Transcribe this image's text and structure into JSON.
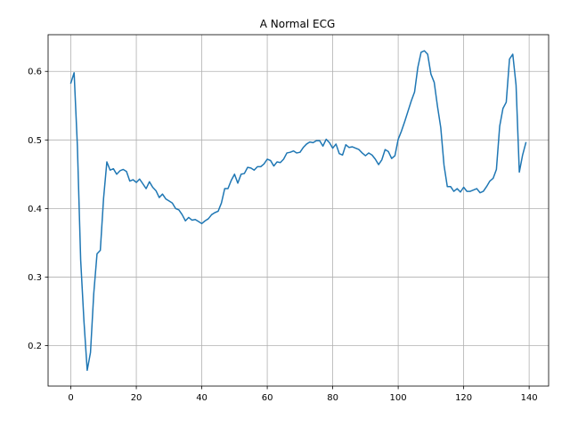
{
  "chart_data": {
    "type": "line",
    "title": "A Normal ECG",
    "xlabel": "",
    "ylabel": "",
    "xlim": [
      -6.95,
      145.95
    ],
    "ylim": [
      0.141,
      0.6535
    ],
    "xticks": [
      0,
      20,
      40,
      60,
      80,
      100,
      120,
      140
    ],
    "yticks": [
      0.2,
      0.3,
      0.4,
      0.5,
      0.6
    ],
    "grid": true,
    "series": [
      {
        "color": "#1f77b4",
        "x": [
          0,
          1,
          2,
          3,
          4,
          5,
          6,
          7,
          8,
          9,
          10,
          11,
          12,
          13,
          14,
          15,
          16,
          17,
          18,
          19,
          20,
          21,
          22,
          23,
          24,
          25,
          26,
          27,
          28,
          29,
          30,
          31,
          32,
          33,
          34,
          35,
          36,
          37,
          38,
          39,
          40,
          41,
          42,
          43,
          44,
          45,
          46,
          47,
          48,
          49,
          50,
          51,
          52,
          53,
          54,
          55,
          56,
          57,
          58,
          59,
          60,
          61,
          62,
          63,
          64,
          65,
          66,
          67,
          68,
          69,
          70,
          71,
          72,
          73,
          74,
          75,
          76,
          77,
          78,
          79,
          80,
          81,
          82,
          83,
          84,
          85,
          86,
          87,
          88,
          89,
          90,
          91,
          92,
          93,
          94,
          95,
          96,
          97,
          98,
          99,
          100,
          101,
          102,
          103,
          104,
          105,
          106,
          107,
          108,
          109,
          110,
          111,
          112,
          113,
          114,
          115,
          116,
          117,
          118,
          119,
          120,
          121,
          122,
          123,
          124,
          125,
          126,
          127,
          128,
          129,
          130,
          131,
          132,
          133,
          134,
          135,
          136,
          137,
          138,
          139
        ],
        "values": [
          0.583,
          0.598,
          0.491,
          0.325,
          0.236,
          0.164,
          0.19,
          0.276,
          0.334,
          0.339,
          0.415,
          0.468,
          0.456,
          0.458,
          0.45,
          0.455,
          0.457,
          0.454,
          0.44,
          0.442,
          0.438,
          0.443,
          0.436,
          0.429,
          0.439,
          0.431,
          0.426,
          0.416,
          0.421,
          0.414,
          0.411,
          0.408,
          0.4,
          0.398,
          0.391,
          0.382,
          0.387,
          0.383,
          0.384,
          0.381,
          0.378,
          0.382,
          0.385,
          0.391,
          0.394,
          0.396,
          0.408,
          0.429,
          0.429,
          0.441,
          0.45,
          0.437,
          0.45,
          0.451,
          0.46,
          0.459,
          0.456,
          0.461,
          0.461,
          0.465,
          0.472,
          0.47,
          0.462,
          0.468,
          0.467,
          0.472,
          0.481,
          0.482,
          0.484,
          0.481,
          0.482,
          0.489,
          0.494,
          0.497,
          0.496,
          0.499,
          0.499,
          0.491,
          0.501,
          0.496,
          0.488,
          0.494,
          0.48,
          0.478,
          0.493,
          0.489,
          0.49,
          0.488,
          0.486,
          0.481,
          0.477,
          0.481,
          0.478,
          0.472,
          0.464,
          0.471,
          0.486,
          0.483,
          0.473,
          0.477,
          0.501,
          0.513,
          0.527,
          0.542,
          0.557,
          0.57,
          0.606,
          0.628,
          0.63,
          0.625,
          0.596,
          0.584,
          0.549,
          0.518,
          0.463,
          0.432,
          0.432,
          0.425,
          0.429,
          0.424,
          0.431,
          0.425,
          0.425,
          0.427,
          0.429,
          0.423,
          0.425,
          0.432,
          0.44,
          0.444,
          0.457,
          0.52,
          0.546,
          0.555,
          0.618,
          0.625,
          0.58,
          0.453,
          0.478,
          0.496
        ]
      }
    ]
  }
}
